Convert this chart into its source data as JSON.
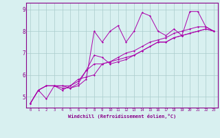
{
  "xlabel": "Windchill (Refroidissement éolien,°C)",
  "bg_color": "#d8f0f0",
  "line_color": "#aa00aa",
  "grid_color": "#aacccc",
  "xlim": [
    -0.5,
    23.5
  ],
  "ylim": [
    4.5,
    9.3
  ],
  "yticks": [
    5,
    6,
    7,
    8,
    9
  ],
  "xticks": [
    0,
    1,
    2,
    3,
    4,
    5,
    6,
    7,
    8,
    9,
    10,
    11,
    12,
    13,
    14,
    15,
    16,
    17,
    18,
    19,
    20,
    21,
    22,
    23
  ],
  "series": [
    [
      4.7,
      5.3,
      4.9,
      5.5,
      5.5,
      5.4,
      5.5,
      5.8,
      8.0,
      7.5,
      8.0,
      8.25,
      7.5,
      8.0,
      8.85,
      8.7,
      8.0,
      7.8,
      8.1,
      7.8,
      8.9,
      8.9,
      8.2,
      8.0
    ],
    [
      4.7,
      5.3,
      5.5,
      5.5,
      5.4,
      5.4,
      5.6,
      6.2,
      6.5,
      6.5,
      6.6,
      6.7,
      6.8,
      6.9,
      7.1,
      7.3,
      7.5,
      7.5,
      7.7,
      7.8,
      7.9,
      8.0,
      8.1,
      8.0
    ],
    [
      4.7,
      5.3,
      5.5,
      5.5,
      5.3,
      5.5,
      5.7,
      6.2,
      6.9,
      6.8,
      6.5,
      6.6,
      6.7,
      6.9,
      7.1,
      7.3,
      7.5,
      7.5,
      7.7,
      7.8,
      7.9,
      8.0,
      8.1,
      8.0
    ],
    [
      4.7,
      5.3,
      5.5,
      5.5,
      5.5,
      5.5,
      5.8,
      5.9,
      6.0,
      6.5,
      6.6,
      6.8,
      7.0,
      7.1,
      7.3,
      7.5,
      7.6,
      7.7,
      7.9,
      8.0,
      8.1,
      8.2,
      8.2,
      8.0
    ]
  ]
}
